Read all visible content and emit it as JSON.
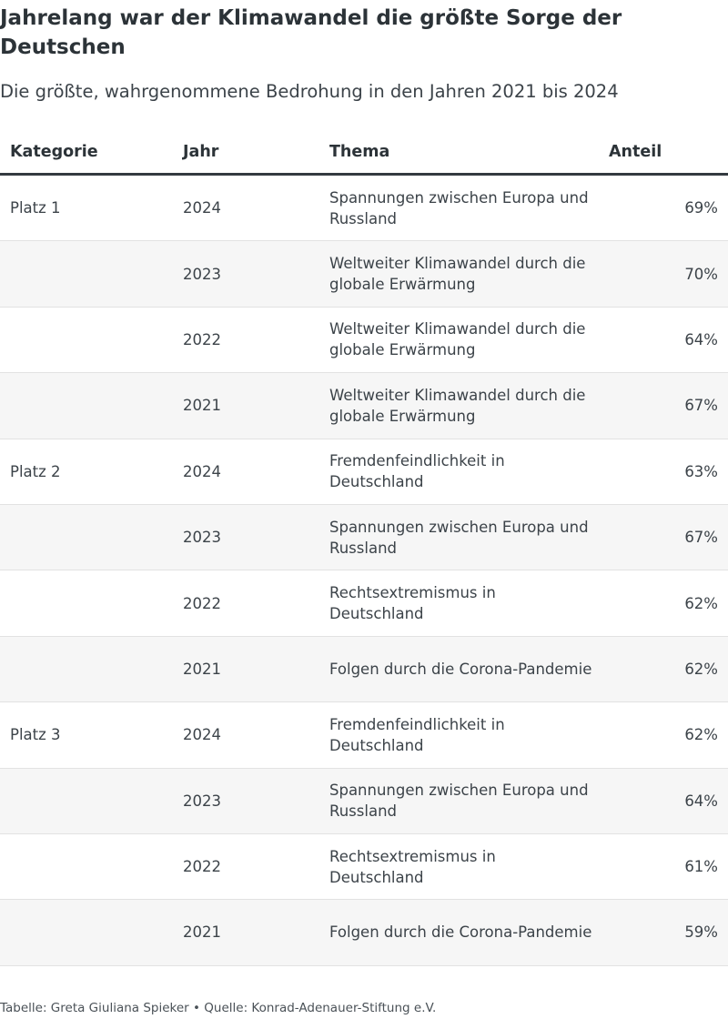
{
  "title": "Jahrelang war der Klimawandel die größte Sorge der Deutschen",
  "subtitle": "Die größte, wahrgenommene Bedrohung in den Jahren 2021 bis 2024",
  "footer": "Tabelle: Greta Giuliana Spieker • Quelle: Konrad-Adenauer-Stiftung e.V.",
  "chart_data": {
    "type": "table",
    "columns": [
      "Kategorie",
      "Jahr",
      "Thema",
      "Anteil"
    ],
    "rows": [
      {
        "kategorie": "Platz 1",
        "jahr": "2024",
        "thema": "Spannungen zwischen Europa und Russland",
        "anteil": "69%"
      },
      {
        "kategorie": "",
        "jahr": "2023",
        "thema": "Weltweiter Klimawandel durch die globale Erwärmung",
        "anteil": "70%"
      },
      {
        "kategorie": "",
        "jahr": "2022",
        "thema": "Weltweiter Klimawandel durch die globale Erwärmung",
        "anteil": "64%"
      },
      {
        "kategorie": "",
        "jahr": "2021",
        "thema": "Weltweiter Klimawandel durch die globale Erwärmung",
        "anteil": "67%"
      },
      {
        "kategorie": "Platz 2",
        "jahr": "2024",
        "thema": "Fremdenfeindlichkeit in Deutschland",
        "anteil": "63%"
      },
      {
        "kategorie": "",
        "jahr": "2023",
        "thema": "Spannungen zwischen Europa und Russland",
        "anteil": "67%"
      },
      {
        "kategorie": "",
        "jahr": "2022",
        "thema": "Rechtsextremismus in Deutschland",
        "anteil": "62%"
      },
      {
        "kategorie": "",
        "jahr": "2021",
        "thema": "Folgen durch die Corona-Pandemie",
        "anteil": "62%"
      },
      {
        "kategorie": "Platz 3",
        "jahr": "2024",
        "thema": "Fremdenfeindlichkeit in Deutschland",
        "anteil": "62%"
      },
      {
        "kategorie": "",
        "jahr": "2023",
        "thema": "Spannungen zwischen Europa und Russland",
        "anteil": "64%"
      },
      {
        "kategorie": "",
        "jahr": "2022",
        "thema": "Rechtsextremismus in Deutschland",
        "anteil": "61%"
      },
      {
        "kategorie": "",
        "jahr": "2021",
        "thema": "Folgen durch die Corona-Pandemie",
        "anteil": "59%"
      }
    ]
  }
}
